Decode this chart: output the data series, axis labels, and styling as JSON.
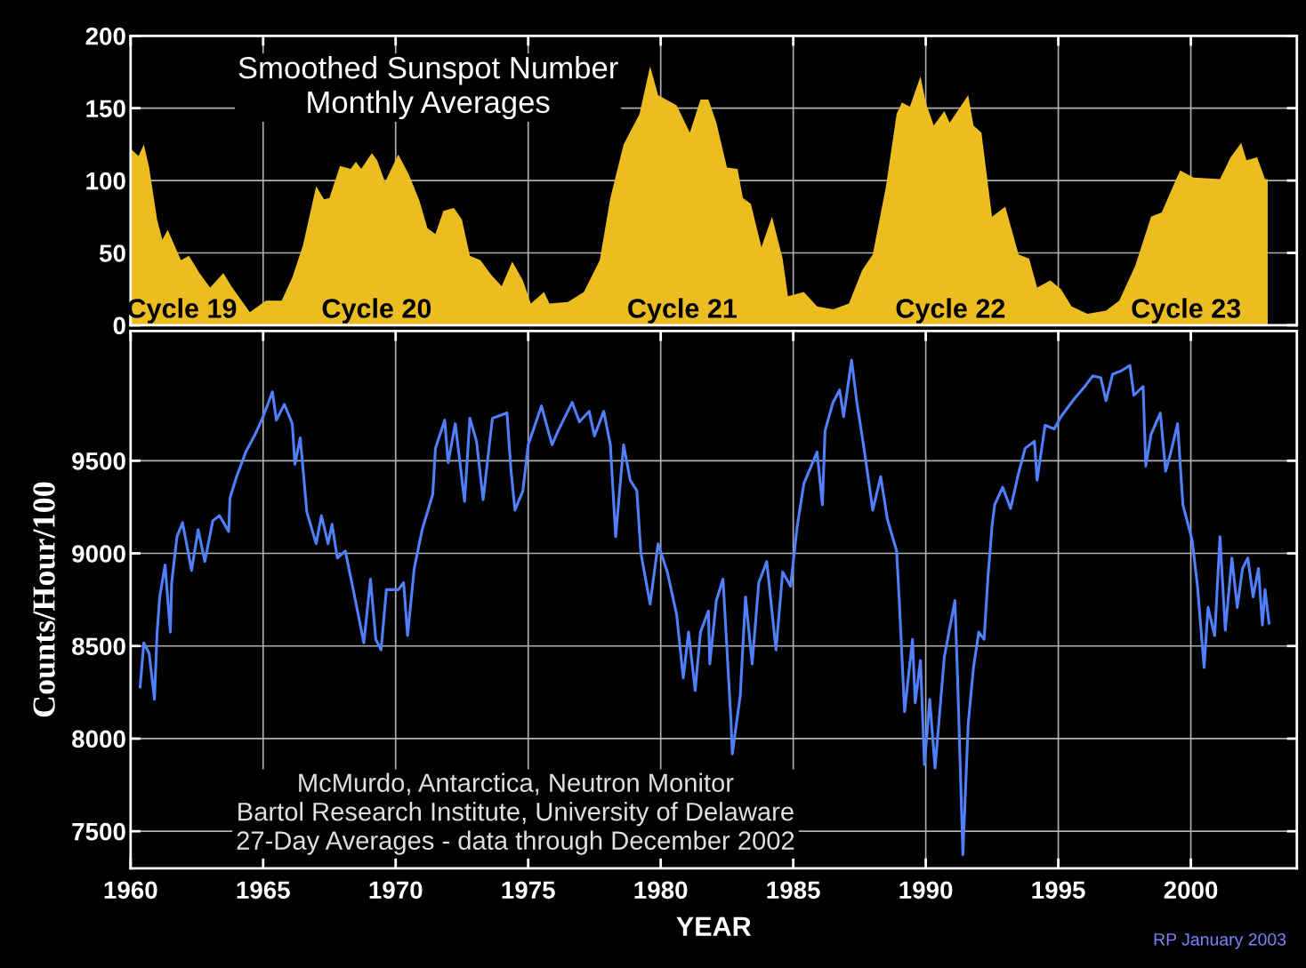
{
  "chart_data": [
    {
      "type": "area",
      "title": "Smoothed Sunspot Number\nMonthly Averages",
      "x": [
        1960.0,
        1960.3,
        1960.5,
        1960.7,
        1961.0,
        1961.2,
        1961.4,
        1961.9,
        1962.2,
        1962.6,
        1963.0,
        1963.5,
        1963.8,
        1964.5,
        1965.1,
        1965.7,
        1966.1,
        1966.5,
        1967.0,
        1967.3,
        1967.5,
        1967.9,
        1968.3,
        1968.5,
        1968.7,
        1969.1,
        1969.3,
        1969.6,
        1970.1,
        1970.5,
        1970.9,
        1971.2,
        1971.5,
        1971.8,
        1972.2,
        1972.5,
        1972.8,
        1973.2,
        1973.6,
        1974.0,
        1974.4,
        1974.8,
        1975.1,
        1975.6,
        1975.8,
        1976.5,
        1977.1,
        1977.7,
        1978.1,
        1978.6,
        1979.2,
        1979.6,
        1979.9,
        1980.6,
        1981.1,
        1981.5,
        1981.8,
        1982.1,
        1982.5,
        1982.9,
        1983.1,
        1983.4,
        1983.8,
        1984.2,
        1984.6,
        1984.8,
        1985.4,
        1985.9,
        1986.5,
        1987.1,
        1987.6,
        1988.0,
        1988.5,
        1988.9,
        1989.1,
        1989.4,
        1989.8,
        1990.0,
        1990.3,
        1990.7,
        1990.9,
        1991.6,
        1991.8,
        1992.1,
        1992.5,
        1993.0,
        1993.5,
        1993.9,
        1994.2,
        1994.7,
        1995.1,
        1995.5,
        1996.1,
        1996.8,
        1997.3,
        1997.9,
        1998.5,
        1998.9,
        1999.4,
        1999.6,
        2000.1,
        2001.1,
        2001.5,
        2001.9,
        2002.1,
        2002.5,
        2002.8,
        2002.9
      ],
      "series": [
        {
          "color": "#ebbd20",
          "values": [
            122,
            117,
            125,
            109,
            73,
            59,
            66,
            45,
            48,
            36,
            26,
            36,
            27,
            9,
            17,
            17,
            33,
            55,
            96,
            87,
            88,
            110,
            108,
            113,
            108,
            119,
            114,
            99,
            118,
            104,
            86,
            67,
            63,
            79,
            81,
            73,
            48,
            45,
            35,
            27,
            44,
            31,
            15,
            23,
            15,
            16,
            23,
            45,
            88,
            125,
            146,
            179,
            159,
            152,
            133,
            156,
            156,
            140,
            109,
            108,
            88,
            84,
            54,
            75,
            46,
            20,
            23,
            13,
            11,
            15,
            38,
            49,
            96,
            146,
            154,
            151,
            172,
            154,
            138,
            148,
            140,
            159,
            138,
            133,
            75,
            82,
            49,
            46,
            26,
            31,
            25,
            13,
            8,
            10,
            17,
            41,
            75,
            78,
            99,
            107,
            102,
            101,
            116,
            126,
            114,
            116,
            101,
            101
          ]
        }
      ],
      "xlim": [
        1960,
        2004
      ],
      "xticks": [
        1960,
        1965,
        1970,
        1975,
        1980,
        1985,
        1990,
        1995,
        2000
      ],
      "ylim": [
        0,
        200
      ],
      "yticks": [
        0,
        50,
        100,
        150,
        200
      ],
      "grid": true,
      "tick_labels": "y",
      "annotations": [
        "Cycle 19",
        "Cycle 20",
        "Cycle 21",
        "Cycle 22",
        "Cycle 23"
      ]
    },
    {
      "type": "line",
      "xlabel": "YEAR",
      "ylabel": "Counts/Hour/100",
      "x": [
        1960.36,
        1960.5,
        1960.7,
        1960.9,
        1961.0,
        1961.1,
        1961.3,
        1961.5,
        1961.55,
        1961.75,
        1961.96,
        1962.3,
        1962.55,
        1962.8,
        1963.1,
        1963.35,
        1963.7,
        1963.75,
        1964.0,
        1964.35,
        1964.7,
        1965.0,
        1965.35,
        1965.5,
        1965.8,
        1966.1,
        1966.2,
        1966.4,
        1966.65,
        1967.0,
        1967.2,
        1967.45,
        1967.6,
        1967.8,
        1968.1,
        1968.4,
        1968.8,
        1969.05,
        1969.25,
        1969.45,
        1969.65,
        1970.1,
        1970.3,
        1970.45,
        1970.7,
        1971.0,
        1971.4,
        1971.5,
        1971.85,
        1971.98,
        1972.25,
        1972.6,
        1972.8,
        1973.05,
        1973.3,
        1973.65,
        1974.2,
        1974.35,
        1974.5,
        1974.8,
        1975.0,
        1975.5,
        1975.9,
        1976.13,
        1976.66,
        1976.93,
        1977.3,
        1977.5,
        1977.85,
        1978.1,
        1978.3,
        1978.6,
        1978.85,
        1979.1,
        1979.25,
        1979.6,
        1979.9,
        1980.25,
        1980.6,
        1980.85,
        1981.05,
        1981.3,
        1981.5,
        1981.8,
        1981.85,
        1982.1,
        1982.35,
        1982.65,
        1982.7,
        1983.0,
        1983.2,
        1983.45,
        1983.7,
        1984.0,
        1984.35,
        1984.6,
        1984.9,
        1985.15,
        1985.4,
        1985.9,
        1986.1,
        1986.2,
        1986.5,
        1986.75,
        1986.9,
        1987.2,
        1987.4,
        1987.65,
        1988.0,
        1988.3,
        1988.55,
        1988.9,
        1989.0,
        1989.2,
        1989.5,
        1989.6,
        1989.8,
        1989.95,
        1990.15,
        1990.35,
        1990.7,
        1991.1,
        1991.2,
        1991.4,
        1991.6,
        1991.8,
        1992.0,
        1992.2,
        1992.35,
        1992.5,
        1992.6,
        1992.9,
        1993.2,
        1993.5,
        1993.75,
        1994.1,
        1994.2,
        1994.5,
        1994.85,
        1995.1,
        1995.6,
        1996.0,
        1996.3,
        1996.6,
        1996.8,
        1997.05,
        1997.4,
        1997.7,
        1997.85,
        1998.2,
        1998.3,
        1998.5,
        1998.85,
        1999.05,
        1999.25,
        1999.5,
        1999.7,
        2000.05,
        2000.25,
        2000.5,
        2000.65,
        2000.9,
        2001.1,
        2001.3,
        2001.55,
        2001.75,
        2001.95,
        2002.15,
        2002.35,
        2002.55,
        2002.7,
        2002.8,
        2002.95
      ],
      "series": [
        {
          "color": "#5080ff",
          "values": [
            8279,
            8517,
            8460,
            8212,
            8575,
            8765,
            8937,
            8575,
            8842,
            9090,
            9166,
            8908,
            9128,
            8956,
            9176,
            9204,
            9118,
            9300,
            9414,
            9548,
            9643,
            9738,
            9872,
            9719,
            9805,
            9700,
            9481,
            9624,
            9223,
            9052,
            9204,
            9052,
            9157,
            8975,
            9013,
            8804,
            8517,
            8861,
            8536,
            8479,
            8804,
            8804,
            8842,
            8556,
            8918,
            9128,
            9319,
            9567,
            9719,
            9490,
            9700,
            9281,
            9729,
            9605,
            9290,
            9729,
            9758,
            9452,
            9233,
            9338,
            9586,
            9796,
            9586,
            9662,
            9815,
            9710,
            9767,
            9634,
            9767,
            9586,
            9090,
            9586,
            9395,
            9338,
            9004,
            8727,
            9052,
            8899,
            8670,
            8327,
            8575,
            8260,
            8575,
            8689,
            8403,
            8746,
            8861,
            8098,
            7917,
            8231,
            8765,
            8403,
            8842,
            8956,
            8479,
            8899,
            8823,
            9147,
            9376,
            9548,
            9262,
            9662,
            9815,
            9882,
            9738,
            10044,
            9815,
            9586,
            9233,
            9414,
            9185,
            9013,
            8746,
            8145,
            8536,
            8193,
            8422,
            7860,
            8212,
            7841,
            8441,
            8746,
            8327,
            7373,
            8079,
            8384,
            8575,
            8536,
            8880,
            9147,
            9262,
            9357,
            9242,
            9433,
            9567,
            9605,
            9395,
            9691,
            9672,
            9738,
            9834,
            9901,
            9958,
            9948,
            9824,
            9967,
            9987,
            10015,
            9853,
            9901,
            9471,
            9643,
            9758,
            9443,
            9548,
            9700,
            9262,
            9071,
            8823,
            8384,
            8708,
            8556,
            9090,
            8585,
            8975,
            8708,
            8918,
            8975,
            8765,
            8918,
            8613,
            8804,
            8623
          ]
        }
      ],
      "xlim": [
        1960,
        2004
      ],
      "xticks": [
        1960,
        1965,
        1970,
        1975,
        1980,
        1985,
        1990,
        1995,
        2000
      ],
      "ylim": [
        7300,
        10200
      ],
      "yticks": [
        7500,
        8000,
        8500,
        9000,
        9500
      ],
      "grid": true,
      "annotations": [
        "McMurdo, Antarctica, Neutron Monitor\nBartol Research Institute, University of Delaware\n27-Day Averages - data through December 2002",
        "RP January 2003"
      ]
    }
  ]
}
